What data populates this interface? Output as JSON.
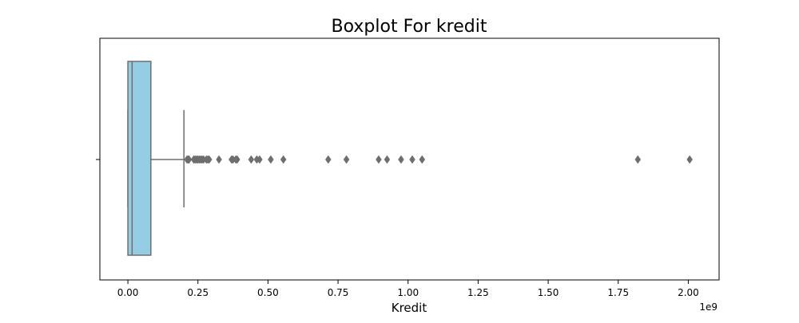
{
  "chart_data": {
    "type": "boxplot",
    "title": "Boxplot For kredit",
    "xlabel": "Kredit",
    "ylabel": "",
    "x_scale_label": "1e9",
    "xlim": [
      -0.1,
      2.11
    ],
    "x_scale": 1000000000,
    "x_ticks": [
      0.0,
      0.25,
      0.5,
      0.75,
      1.0,
      1.25,
      1.5,
      1.75,
      2.0
    ],
    "x_tick_labels": [
      "0.00",
      "0.25",
      "0.50",
      "0.75",
      "1.00",
      "1.25",
      "1.50",
      "1.75",
      "2.00"
    ],
    "orientation": "horizontal",
    "grid": false,
    "box": {
      "whisker_low": 0.0,
      "q1": 0.0,
      "median": 0.015,
      "q3": 0.082,
      "whisker_high": 0.2
    },
    "outliers": [
      0.211,
      0.215,
      0.218,
      0.235,
      0.24,
      0.245,
      0.25,
      0.255,
      0.26,
      0.265,
      0.27,
      0.28,
      0.285,
      0.29,
      0.325,
      0.37,
      0.375,
      0.385,
      0.39,
      0.44,
      0.46,
      0.47,
      0.51,
      0.555,
      0.715,
      0.78,
      0.895,
      0.925,
      0.975,
      1.015,
      1.05,
      1.82,
      2.005
    ],
    "colors": {
      "box_fill": "#95cde4",
      "box_edge": "#6e6e6e",
      "outlier": "#6e6e6e",
      "axes": "#000000"
    }
  }
}
